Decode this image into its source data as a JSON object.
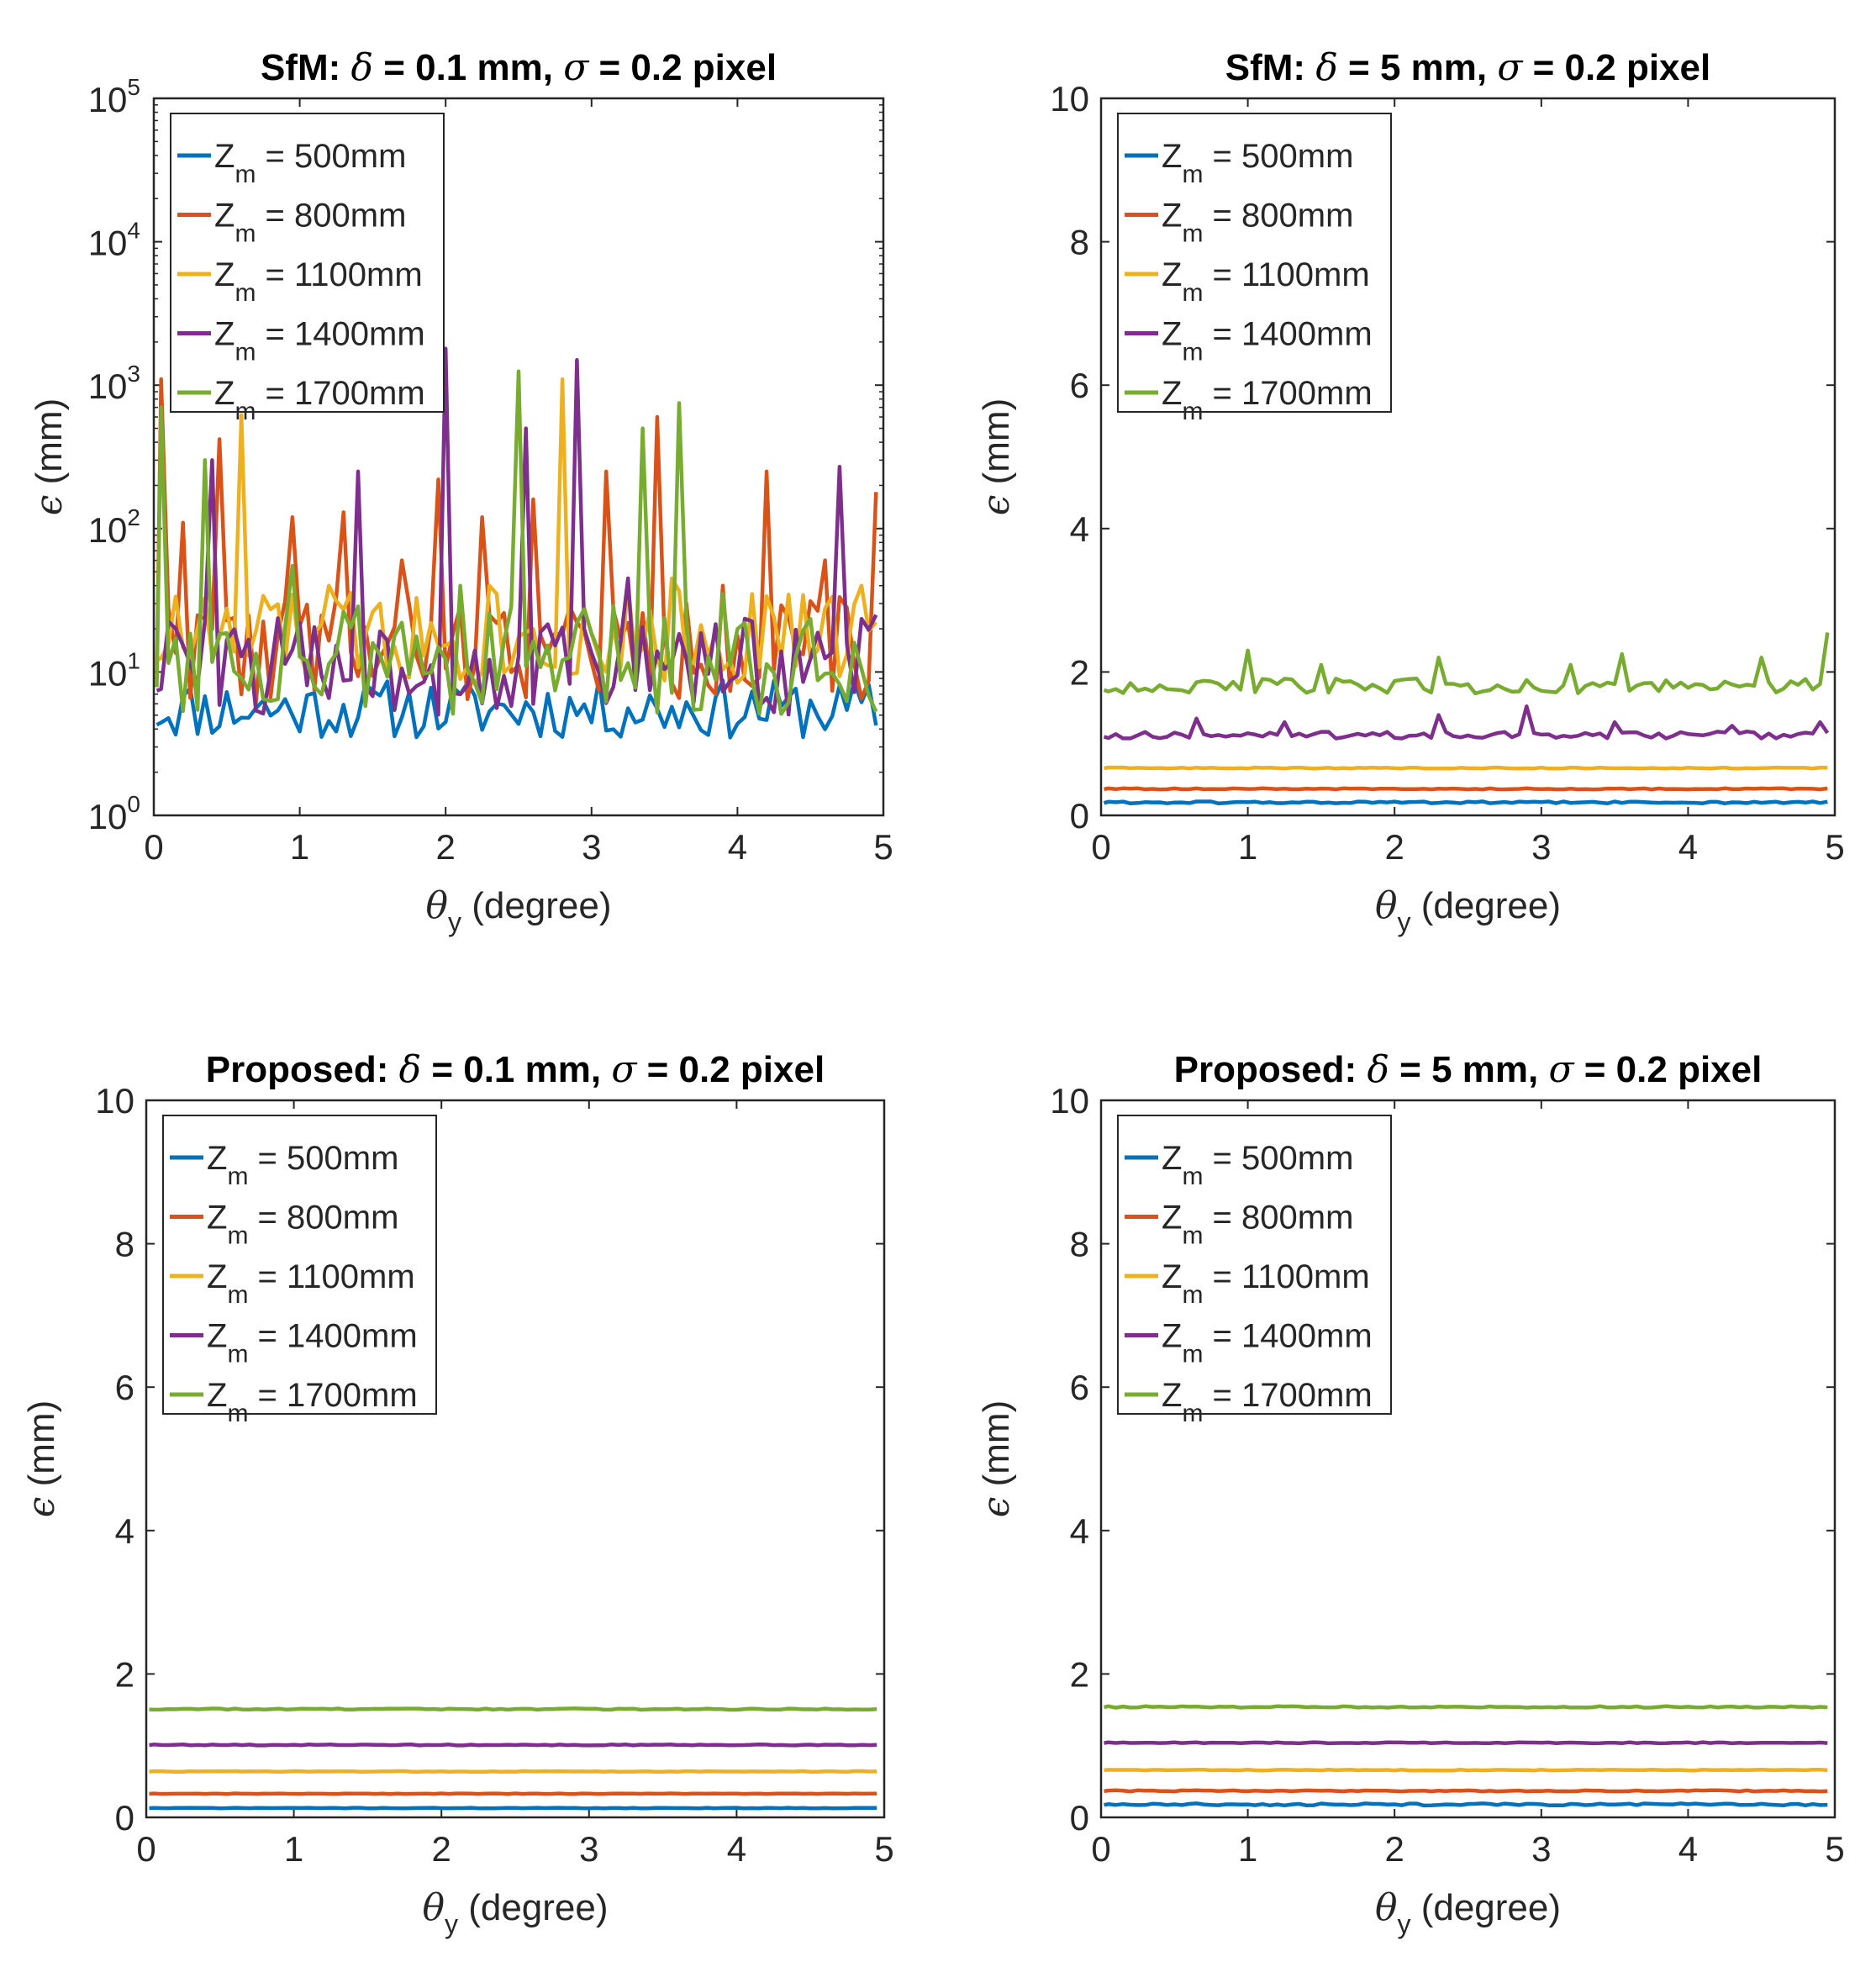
{
  "chart_data": [
    {
      "type": "line",
      "panel": "top-left",
      "title_prefix": "SfM: ",
      "delta_value": " = 0.1 mm, ",
      "sigma_value": " = 0.2 pixel",
      "xlabel": " (degree)",
      "ylabel": " (mm)",
      "xlim": [
        0,
        5
      ],
      "ylim": [
        1,
        100000
      ],
      "yscale": "log",
      "xticks": [
        "0",
        "1",
        "2",
        "3",
        "4",
        "5"
      ],
      "yticks": [
        {
          "base": "10",
          "exp": "0"
        },
        {
          "base": "10",
          "exp": "1"
        },
        {
          "base": "10",
          "exp": "2"
        },
        {
          "base": "10",
          "exp": "3"
        },
        {
          "base": "10",
          "exp": "4"
        },
        {
          "base": "10",
          "exp": "5"
        }
      ],
      "legend_loc": "top-left",
      "series": [
        {
          "name": "Z_m = 500mm",
          "label": " = 500mm",
          "color": "#0072BD",
          "base": 5.5,
          "noise": 0.3,
          "spikes": [],
          "seed": 11
        },
        {
          "name": "Z_m = 800mm",
          "label": " = 800mm",
          "color": "#D95319",
          "base": 14,
          "noise": 0.55,
          "spikes": [
            [
              0.05,
              1100
            ],
            [
              0.2,
              110
            ],
            [
              0.45,
              420
            ],
            [
              0.95,
              120
            ],
            [
              1.3,
              130
            ],
            [
              1.7,
              60
            ],
            [
              1.95,
              220
            ],
            [
              2.25,
              120
            ],
            [
              2.6,
              160
            ],
            [
              3.1,
              250
            ],
            [
              3.45,
              600
            ],
            [
              3.9,
              40
            ],
            [
              4.2,
              250
            ],
            [
              4.6,
              60
            ],
            [
              5.0,
              180
            ]
          ],
          "seed": 22
        },
        {
          "name": "Z_m = 1100mm",
          "label": " = 1100mm",
          "color": "#EDB120",
          "base": 18,
          "noise": 0.5,
          "spikes": [
            [
              0.6,
              620
            ],
            [
              1.2,
              40
            ],
            [
              1.55,
              30
            ],
            [
              2.3,
              40
            ],
            [
              2.8,
              1100
            ],
            [
              3.55,
              45
            ],
            [
              4.1,
              35
            ],
            [
              4.85,
              40
            ]
          ],
          "seed": 33
        },
        {
          "name": "Z_m = 1400mm",
          "label": " = 1400mm",
          "color": "#7E2F8E",
          "base": 11,
          "noise": 0.5,
          "spikes": [
            [
              0.15,
              20
            ],
            [
              0.4,
              300
            ],
            [
              1.4,
              250
            ],
            [
              2.0,
              1800
            ],
            [
              2.55,
              500
            ],
            [
              2.9,
              1500
            ],
            [
              3.25,
              45
            ],
            [
              4.95,
              25
            ],
            [
              4.7,
              270
            ]
          ],
          "seed": 44
        },
        {
          "name": "Z_m = 1700mm",
          "label": " = 1700mm",
          "color": "#77AC30",
          "base": 12,
          "noise": 0.55,
          "spikes": [
            [
              0.05,
              700
            ],
            [
              0.35,
              300
            ],
            [
              0.95,
              55
            ],
            [
              2.1,
              40
            ],
            [
              2.5,
              1250
            ],
            [
              3.35,
              500
            ],
            [
              3.6,
              750
            ],
            [
              3.9,
              35
            ]
          ],
          "seed": 55
        }
      ]
    },
    {
      "type": "line",
      "panel": "top-right",
      "title_prefix": "SfM: ",
      "delta_value": " = 5 mm, ",
      "sigma_value": " = 0.2 pixel",
      "xlabel": " (degree)",
      "ylabel": " (mm)",
      "xlim": [
        0,
        5
      ],
      "ylim": [
        0,
        10
      ],
      "yscale": "linear",
      "xticks": [
        "0",
        "1",
        "2",
        "3",
        "4",
        "5"
      ],
      "yticks": [
        "0",
        "2",
        "4",
        "6",
        "8",
        "10"
      ],
      "legend_loc": "top-left",
      "series": [
        {
          "name": "Z_m = 500mm",
          "label": " = 500mm",
          "color": "#0072BD",
          "base": 0.18,
          "noise": 0.015,
          "spikes": [],
          "seed": 61
        },
        {
          "name": "Z_m = 800mm",
          "label": " = 800mm",
          "color": "#D95319",
          "base": 0.37,
          "noise": 0.008,
          "spikes": [],
          "seed": 62
        },
        {
          "name": "Z_m = 1100mm",
          "label": " = 1100mm",
          "color": "#EDB120",
          "base": 0.66,
          "noise": 0.008,
          "spikes": [],
          "seed": 63
        },
        {
          "name": "Z_m = 1400mm",
          "label": " = 1400mm",
          "color": "#7E2F8E",
          "base": 1.12,
          "noise": 0.05,
          "spikes": [
            [
              0.65,
              1.35
            ],
            [
              1.25,
              1.3
            ],
            [
              2.3,
              1.4
            ],
            [
              2.9,
              1.52
            ],
            [
              3.5,
              1.3
            ],
            [
              4.3,
              1.25
            ],
            [
              4.9,
              1.3
            ]
          ],
          "seed": 64
        },
        {
          "name": "Z_m = 1700mm",
          "label": " = 1700mm",
          "color": "#77AC30",
          "base": 1.8,
          "noise": 0.11,
          "spikes": [
            [
              1.0,
              2.3
            ],
            [
              1.5,
              2.1
            ],
            [
              2.3,
              2.2
            ],
            [
              3.2,
              2.1
            ],
            [
              3.55,
              2.25
            ],
            [
              4.5,
              2.2
            ],
            [
              4.97,
              2.55
            ]
          ],
          "seed": 65
        }
      ]
    },
    {
      "type": "line",
      "panel": "bottom-left",
      "title_prefix": "Proposed: ",
      "delta_value": " = 0.1 mm, ",
      "sigma_value": " = 0.2 pixel",
      "xlabel": " (degree)",
      "ylabel": " (mm)",
      "xlim": [
        0,
        5
      ],
      "ylim": [
        0,
        10
      ],
      "yscale": "linear",
      "xticks": [
        "0",
        "1",
        "2",
        "3",
        "4",
        "5"
      ],
      "yticks": [
        "0",
        "2",
        "4",
        "6",
        "8",
        "10"
      ],
      "legend_loc": "top-left",
      "series": [
        {
          "name": "Z_m = 500mm",
          "label": " = 500mm",
          "color": "#0072BD",
          "base": 0.13,
          "noise": 0.004,
          "spikes": [],
          "seed": 71
        },
        {
          "name": "Z_m = 800mm",
          "label": " = 800mm",
          "color": "#D95319",
          "base": 0.33,
          "noise": 0.004,
          "spikes": [],
          "seed": 72
        },
        {
          "name": "Z_m = 1100mm",
          "label": " = 1100mm",
          "color": "#EDB120",
          "base": 0.64,
          "noise": 0.005,
          "spikes": [],
          "seed": 73
        },
        {
          "name": "Z_m = 1400mm",
          "label": " = 1400mm",
          "color": "#7E2F8E",
          "base": 1.01,
          "noise": 0.007,
          "spikes": [],
          "seed": 74
        },
        {
          "name": "Z_m = 1700mm",
          "label": " = 1700mm",
          "color": "#77AC30",
          "base": 1.51,
          "noise": 0.01,
          "spikes": [],
          "seed": 75
        }
      ]
    },
    {
      "type": "line",
      "panel": "bottom-right",
      "title_prefix": "Proposed: ",
      "delta_value": " = 5 mm, ",
      "sigma_value": " = 0.2 pixel",
      "xlabel": " (degree)",
      "ylabel": " (mm)",
      "xlim": [
        0,
        5
      ],
      "ylim": [
        0,
        10
      ],
      "yscale": "linear",
      "xticks": [
        "0",
        "1",
        "2",
        "3",
        "4",
        "5"
      ],
      "yticks": [
        "0",
        "2",
        "4",
        "6",
        "8",
        "10"
      ],
      "legend_loc": "top-left",
      "series": [
        {
          "name": "Z_m = 500mm",
          "label": " = 500mm",
          "color": "#0072BD",
          "base": 0.18,
          "noise": 0.015,
          "spikes": [],
          "seed": 81
        },
        {
          "name": "Z_m = 800mm",
          "label": " = 800mm",
          "color": "#D95319",
          "base": 0.37,
          "noise": 0.008,
          "spikes": [],
          "seed": 82
        },
        {
          "name": "Z_m = 1100mm",
          "label": " = 1100mm",
          "color": "#EDB120",
          "base": 0.66,
          "noise": 0.006,
          "spikes": [],
          "seed": 83
        },
        {
          "name": "Z_m = 1400mm",
          "label": " = 1400mm",
          "color": "#7E2F8E",
          "base": 1.04,
          "noise": 0.008,
          "spikes": [],
          "seed": 84
        },
        {
          "name": "Z_m = 1700mm",
          "label": " = 1700mm",
          "color": "#77AC30",
          "base": 1.54,
          "noise": 0.01,
          "spikes": [],
          "seed": 85
        }
      ]
    }
  ]
}
